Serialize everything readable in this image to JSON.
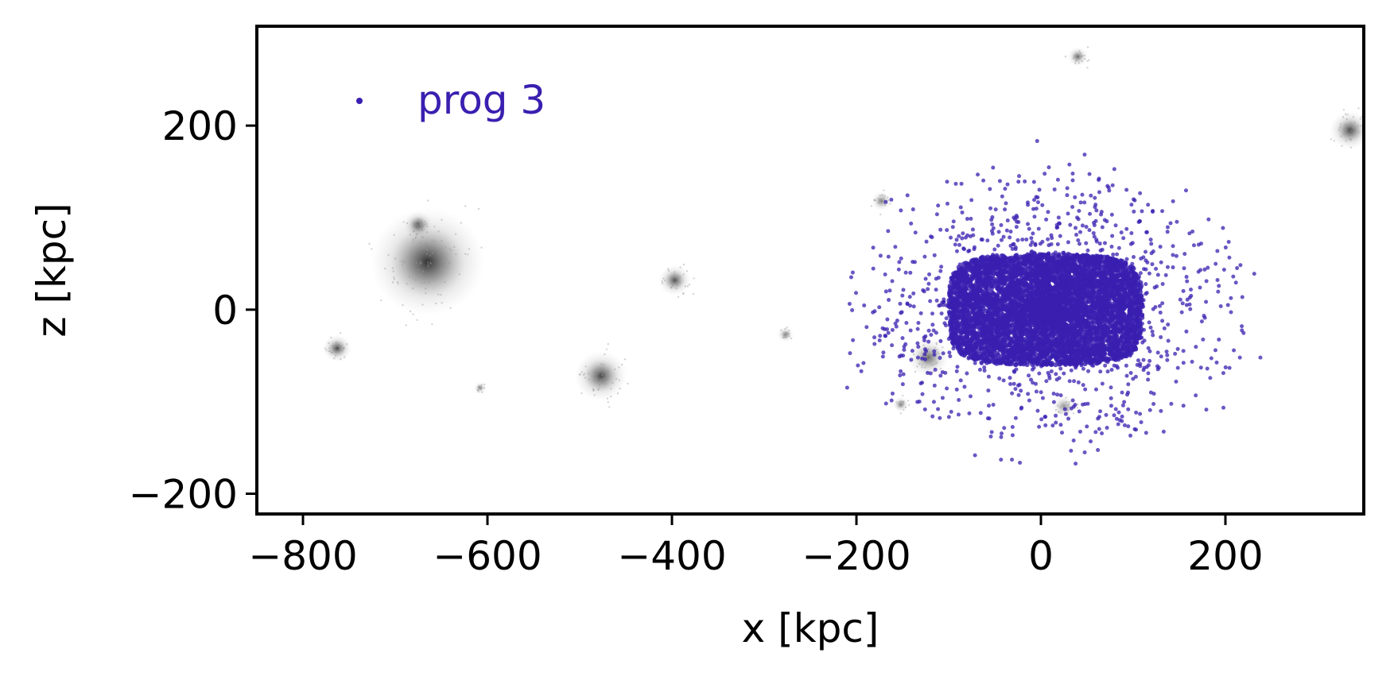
{
  "chart_data": {
    "type": "scatter",
    "xlabel": "x [kpc]",
    "ylabel": "z [kpc]",
    "xlim": [
      -850,
      350
    ],
    "ylim": [
      -222,
      308
    ],
    "x_ticks": [
      -800,
      -600,
      -400,
      -200,
      0,
      200
    ],
    "x_tick_labels": [
      "−800",
      "−600",
      "−400",
      "−200",
      "0",
      "200"
    ],
    "y_ticks": [
      -200,
      0,
      200
    ],
    "y_tick_labels": [
      "−200",
      "0",
      "200"
    ],
    "grid": false,
    "legend_position": "top-left",
    "series": [
      {
        "name": "prog 3",
        "color": "#3a1fb0",
        "distribution": {
          "core_center": [
            5,
            0
          ],
          "core_half_width": [
            105,
            60
          ],
          "halo_x_range": [
            -215,
            240
          ],
          "halo_y_range": [
            -170,
            210
          ]
        }
      }
    ],
    "background_density": {
      "colormap": "greys",
      "blobs": [
        {
          "x": -665,
          "y": 52,
          "size": 28,
          "strength": 0.95
        },
        {
          "x": -675,
          "y": 92,
          "size": 7,
          "strength": 0.8
        },
        {
          "x": -763,
          "y": -42,
          "size": 7,
          "strength": 0.85
        },
        {
          "x": -477,
          "y": -72,
          "size": 13,
          "strength": 0.85
        },
        {
          "x": -397,
          "y": 32,
          "size": 8,
          "strength": 0.8
        },
        {
          "x": -277,
          "y": -27,
          "size": 4,
          "strength": 0.6
        },
        {
          "x": -608,
          "y": -85,
          "size": 3,
          "strength": 0.6
        },
        {
          "x": -122,
          "y": -52,
          "size": 10,
          "strength": 0.7
        },
        {
          "x": -173,
          "y": 118,
          "size": 5,
          "strength": 0.6
        },
        {
          "x": -152,
          "y": -103,
          "size": 4,
          "strength": 0.6
        },
        {
          "x": 25,
          "y": -105,
          "size": 6,
          "strength": 0.5
        },
        {
          "x": 40,
          "y": 275,
          "size": 5,
          "strength": 0.7
        },
        {
          "x": 335,
          "y": 195,
          "size": 10,
          "strength": 0.85
        }
      ]
    }
  }
}
